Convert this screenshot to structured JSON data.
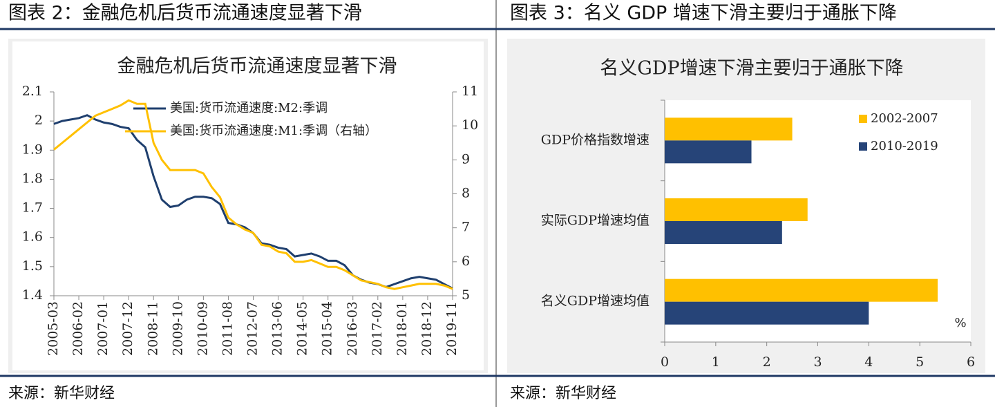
{
  "figures": [
    {
      "caption": "图表 2：金融危机后货币流通速度显著下滑",
      "source": "来源：新华财经"
    },
    {
      "caption": "图表 3：名义 GDP 增速下滑主要归于通胀下降",
      "source": "来源：新华财经"
    }
  ],
  "chart_data": [
    {
      "type": "line",
      "title": "金融危机后货币流通速度显著下滑",
      "categories": [
        "2005-03",
        null,
        null,
        "2006-02",
        null,
        null,
        "2007-01",
        null,
        null,
        "2007-12",
        null,
        null,
        "2008-11",
        null,
        null,
        "2009-10",
        null,
        null,
        "2010-09",
        null,
        null,
        "2011-08",
        null,
        null,
        "2012-07",
        null,
        null,
        "2013-06",
        null,
        null,
        "2014-05",
        null,
        null,
        "2015-04",
        null,
        null,
        "2016-03",
        null,
        null,
        "2017-02",
        null,
        null,
        "2018-01",
        null,
        null,
        "2018-12",
        null,
        null,
        "2019-11"
      ],
      "series": [
        {
          "name": "美国:货币流通速度:M2:季调",
          "color": "#1f3f6e",
          "values": [
            1.99,
            2.0,
            2.005,
            2.01,
            2.02,
            2.005,
            1.995,
            1.99,
            1.98,
            1.975,
            1.935,
            1.91,
            1.81,
            1.73,
            1.705,
            1.71,
            1.73,
            1.74,
            1.74,
            1.735,
            1.715,
            1.65,
            1.645,
            1.635,
            1.615,
            1.58,
            1.575,
            1.565,
            1.56,
            1.535,
            1.54,
            1.545,
            1.535,
            1.52,
            1.52,
            1.505,
            1.47,
            1.455,
            1.445,
            1.44,
            1.43,
            1.44,
            1.45,
            1.46,
            1.465,
            1.46,
            1.455,
            1.44,
            1.425
          ]
        },
        {
          "name": "美国:货币流通速度:M1:季调（右轴）",
          "color": "#ffc000",
          "axis": "y2",
          "values": [
            9.3,
            9.5,
            9.7,
            9.9,
            10.1,
            10.3,
            10.4,
            10.5,
            10.6,
            10.75,
            10.65,
            10.65,
            9.5,
            9.0,
            8.7,
            8.7,
            8.7,
            8.7,
            8.6,
            8.2,
            7.9,
            7.3,
            7.1,
            6.95,
            6.85,
            6.5,
            6.45,
            6.3,
            6.25,
            6.0,
            6.0,
            6.05,
            5.95,
            5.85,
            5.85,
            5.75,
            5.6,
            5.45,
            5.4,
            5.35,
            5.25,
            5.2,
            5.25,
            5.3,
            5.35,
            5.35,
            5.35,
            5.3,
            5.2
          ]
        }
      ],
      "ylim": [
        1.4,
        2.1
      ],
      "yticks": [
        1.4,
        1.5,
        1.6,
        1.7,
        1.8,
        1.9,
        2,
        2.1
      ],
      "y2lim": [
        5,
        11
      ],
      "y2ticks": [
        5,
        6,
        7,
        8,
        9,
        10,
        11
      ]
    },
    {
      "type": "bar",
      "orientation": "horizontal",
      "title": "名义GDP增速下滑主要归于通胀下降",
      "categories": [
        "GDP价格指数增速",
        "实际GDP增速均值",
        "名义GDP增速均值"
      ],
      "series": [
        {
          "name": "2002-2007",
          "color": "#ffc000",
          "values": [
            2.5,
            2.8,
            5.35
          ]
        },
        {
          "name": "2010-2019",
          "color": "#264478",
          "values": [
            1.7,
            2.3,
            4.0
          ]
        }
      ],
      "xlim": [
        0,
        6
      ],
      "xticks": [
        0,
        1,
        2,
        3,
        4,
        5,
        6
      ],
      "annotation": "%"
    }
  ]
}
